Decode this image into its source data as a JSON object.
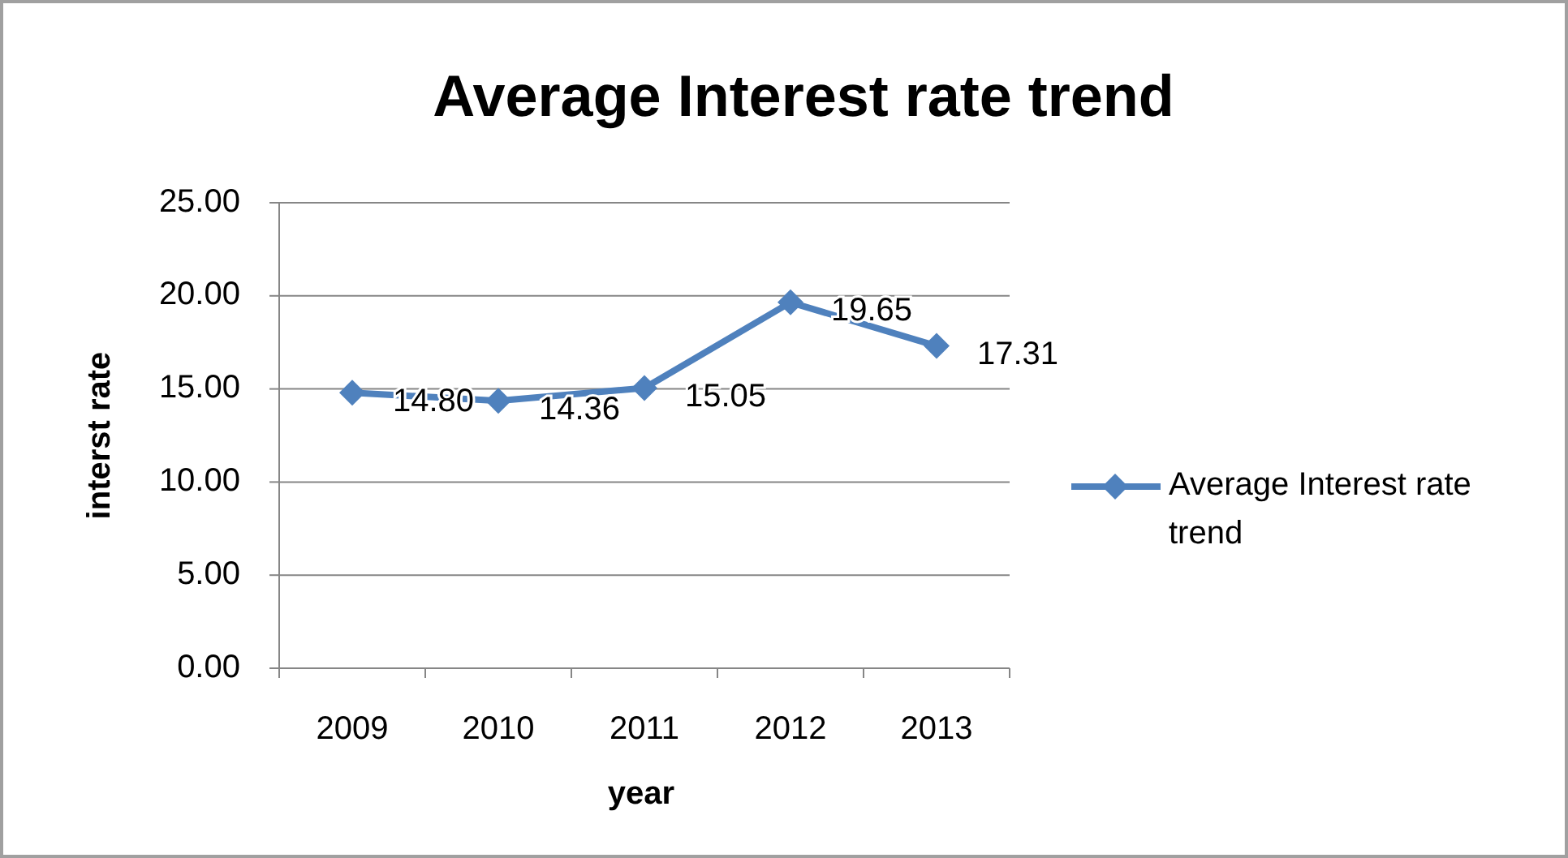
{
  "chart_data": {
    "type": "line",
    "title": "Average Interest rate trend",
    "xlabel": "year",
    "ylabel": "interst rate",
    "categories": [
      "2009",
      "2010",
      "2011",
      "2012",
      "2013"
    ],
    "series": [
      {
        "name": "Average Interest rate trend",
        "color": "#4f81bd",
        "values": [
          14.8,
          14.36,
          15.05,
          19.65,
          17.31
        ],
        "value_labels": [
          "14.80",
          "14.36",
          "15.05",
          "19.65",
          "17.31"
        ]
      }
    ],
    "ylim": [
      0,
      25
    ],
    "yticks": [
      {
        "value": 0,
        "label": "0.00"
      },
      {
        "value": 5,
        "label": "5.00"
      },
      {
        "value": 10,
        "label": "10.00"
      },
      {
        "value": 15,
        "label": "15.00"
      },
      {
        "value": 20,
        "label": "20.00"
      },
      {
        "value": 25,
        "label": "25.00"
      }
    ],
    "grid": "y",
    "legend": "right",
    "marker": "diamond",
    "line_style": "solid"
  }
}
